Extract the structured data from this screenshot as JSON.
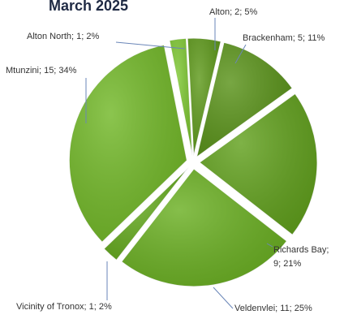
{
  "chart_data": {
    "type": "pie",
    "title": "March 2025",
    "start_angle_deg": -3,
    "direction": "clockwise",
    "exploded": true,
    "slices": [
      {
        "label": "Alton; 2; 5%",
        "name": "Alton",
        "value": 2,
        "percent": 5,
        "color": "#5f9a1c"
      },
      {
        "label": "Brackenham; 5; 11%",
        "name": "Brackenham",
        "value": 5,
        "percent": 11,
        "color": "#5a931a"
      },
      {
        "label": "Richards Bay;",
        "label2": "9; 21%",
        "name": "Richards Bay",
        "value": 9,
        "percent": 21,
        "color": "#62a11e"
      },
      {
        "label": "Veldenvlei; 11; 25%",
        "name": "Veldenvlei",
        "value": 11,
        "percent": 25,
        "color": "#6bb023"
      },
      {
        "label": "Vicinity of Tronox; 1; 2%",
        "name": "Vicinity of Tronox",
        "value": 1,
        "percent": 2,
        "color": "#66ab20"
      },
      {
        "label": "Mtunzini; 15; 34%",
        "name": "Mtunzini",
        "value": 15,
        "percent": 34,
        "color": "#72b828"
      },
      {
        "label": "Alton North; 1; 2%",
        "name": "Alton North",
        "value": 1,
        "percent": 2,
        "color": "#7fc834"
      }
    ]
  }
}
